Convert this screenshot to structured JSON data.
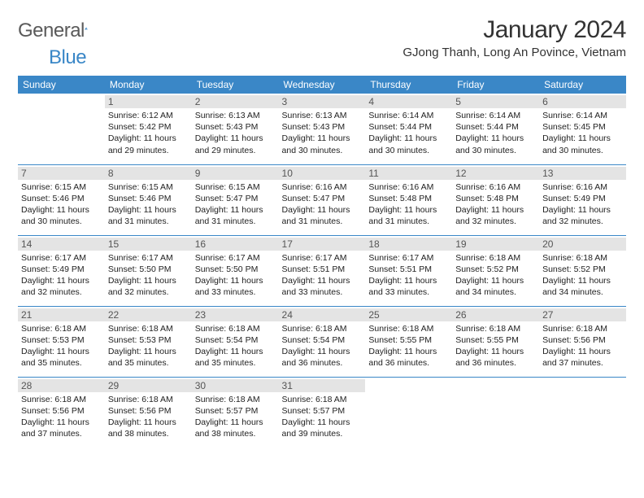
{
  "logo": {
    "text1": "General",
    "text2": "Blue",
    "color_gray": "#5a5a5a",
    "color_blue": "#3a87c7"
  },
  "title": "January 2024",
  "location": "GJong Thanh, Long An Povince, Vietnam",
  "header_bg": "#3a87c7",
  "header_fg": "#ffffff",
  "daynum_bg": "#e4e4e4",
  "border_color": "#3a87c7",
  "weekdays": [
    "Sunday",
    "Monday",
    "Tuesday",
    "Wednesday",
    "Thursday",
    "Friday",
    "Saturday"
  ],
  "weeks": [
    [
      {
        "n": "",
        "sr": "",
        "ss": "",
        "dl": ""
      },
      {
        "n": "1",
        "sr": "Sunrise: 6:12 AM",
        "ss": "Sunset: 5:42 PM",
        "dl": "Daylight: 11 hours and 29 minutes."
      },
      {
        "n": "2",
        "sr": "Sunrise: 6:13 AM",
        "ss": "Sunset: 5:43 PM",
        "dl": "Daylight: 11 hours and 29 minutes."
      },
      {
        "n": "3",
        "sr": "Sunrise: 6:13 AM",
        "ss": "Sunset: 5:43 PM",
        "dl": "Daylight: 11 hours and 30 minutes."
      },
      {
        "n": "4",
        "sr": "Sunrise: 6:14 AM",
        "ss": "Sunset: 5:44 PM",
        "dl": "Daylight: 11 hours and 30 minutes."
      },
      {
        "n": "5",
        "sr": "Sunrise: 6:14 AM",
        "ss": "Sunset: 5:44 PM",
        "dl": "Daylight: 11 hours and 30 minutes."
      },
      {
        "n": "6",
        "sr": "Sunrise: 6:14 AM",
        "ss": "Sunset: 5:45 PM",
        "dl": "Daylight: 11 hours and 30 minutes."
      }
    ],
    [
      {
        "n": "7",
        "sr": "Sunrise: 6:15 AM",
        "ss": "Sunset: 5:46 PM",
        "dl": "Daylight: 11 hours and 30 minutes."
      },
      {
        "n": "8",
        "sr": "Sunrise: 6:15 AM",
        "ss": "Sunset: 5:46 PM",
        "dl": "Daylight: 11 hours and 31 minutes."
      },
      {
        "n": "9",
        "sr": "Sunrise: 6:15 AM",
        "ss": "Sunset: 5:47 PM",
        "dl": "Daylight: 11 hours and 31 minutes."
      },
      {
        "n": "10",
        "sr": "Sunrise: 6:16 AM",
        "ss": "Sunset: 5:47 PM",
        "dl": "Daylight: 11 hours and 31 minutes."
      },
      {
        "n": "11",
        "sr": "Sunrise: 6:16 AM",
        "ss": "Sunset: 5:48 PM",
        "dl": "Daylight: 11 hours and 31 minutes."
      },
      {
        "n": "12",
        "sr": "Sunrise: 6:16 AM",
        "ss": "Sunset: 5:48 PM",
        "dl": "Daylight: 11 hours and 32 minutes."
      },
      {
        "n": "13",
        "sr": "Sunrise: 6:16 AM",
        "ss": "Sunset: 5:49 PM",
        "dl": "Daylight: 11 hours and 32 minutes."
      }
    ],
    [
      {
        "n": "14",
        "sr": "Sunrise: 6:17 AM",
        "ss": "Sunset: 5:49 PM",
        "dl": "Daylight: 11 hours and 32 minutes."
      },
      {
        "n": "15",
        "sr": "Sunrise: 6:17 AM",
        "ss": "Sunset: 5:50 PM",
        "dl": "Daylight: 11 hours and 32 minutes."
      },
      {
        "n": "16",
        "sr": "Sunrise: 6:17 AM",
        "ss": "Sunset: 5:50 PM",
        "dl": "Daylight: 11 hours and 33 minutes."
      },
      {
        "n": "17",
        "sr": "Sunrise: 6:17 AM",
        "ss": "Sunset: 5:51 PM",
        "dl": "Daylight: 11 hours and 33 minutes."
      },
      {
        "n": "18",
        "sr": "Sunrise: 6:17 AM",
        "ss": "Sunset: 5:51 PM",
        "dl": "Daylight: 11 hours and 33 minutes."
      },
      {
        "n": "19",
        "sr": "Sunrise: 6:18 AM",
        "ss": "Sunset: 5:52 PM",
        "dl": "Daylight: 11 hours and 34 minutes."
      },
      {
        "n": "20",
        "sr": "Sunrise: 6:18 AM",
        "ss": "Sunset: 5:52 PM",
        "dl": "Daylight: 11 hours and 34 minutes."
      }
    ],
    [
      {
        "n": "21",
        "sr": "Sunrise: 6:18 AM",
        "ss": "Sunset: 5:53 PM",
        "dl": "Daylight: 11 hours and 35 minutes."
      },
      {
        "n": "22",
        "sr": "Sunrise: 6:18 AM",
        "ss": "Sunset: 5:53 PM",
        "dl": "Daylight: 11 hours and 35 minutes."
      },
      {
        "n": "23",
        "sr": "Sunrise: 6:18 AM",
        "ss": "Sunset: 5:54 PM",
        "dl": "Daylight: 11 hours and 35 minutes."
      },
      {
        "n": "24",
        "sr": "Sunrise: 6:18 AM",
        "ss": "Sunset: 5:54 PM",
        "dl": "Daylight: 11 hours and 36 minutes."
      },
      {
        "n": "25",
        "sr": "Sunrise: 6:18 AM",
        "ss": "Sunset: 5:55 PM",
        "dl": "Daylight: 11 hours and 36 minutes."
      },
      {
        "n": "26",
        "sr": "Sunrise: 6:18 AM",
        "ss": "Sunset: 5:55 PM",
        "dl": "Daylight: 11 hours and 36 minutes."
      },
      {
        "n": "27",
        "sr": "Sunrise: 6:18 AM",
        "ss": "Sunset: 5:56 PM",
        "dl": "Daylight: 11 hours and 37 minutes."
      }
    ],
    [
      {
        "n": "28",
        "sr": "Sunrise: 6:18 AM",
        "ss": "Sunset: 5:56 PM",
        "dl": "Daylight: 11 hours and 37 minutes."
      },
      {
        "n": "29",
        "sr": "Sunrise: 6:18 AM",
        "ss": "Sunset: 5:56 PM",
        "dl": "Daylight: 11 hours and 38 minutes."
      },
      {
        "n": "30",
        "sr": "Sunrise: 6:18 AM",
        "ss": "Sunset: 5:57 PM",
        "dl": "Daylight: 11 hours and 38 minutes."
      },
      {
        "n": "31",
        "sr": "Sunrise: 6:18 AM",
        "ss": "Sunset: 5:57 PM",
        "dl": "Daylight: 11 hours and 39 minutes."
      },
      {
        "n": "",
        "sr": "",
        "ss": "",
        "dl": ""
      },
      {
        "n": "",
        "sr": "",
        "ss": "",
        "dl": ""
      },
      {
        "n": "",
        "sr": "",
        "ss": "",
        "dl": ""
      }
    ]
  ]
}
